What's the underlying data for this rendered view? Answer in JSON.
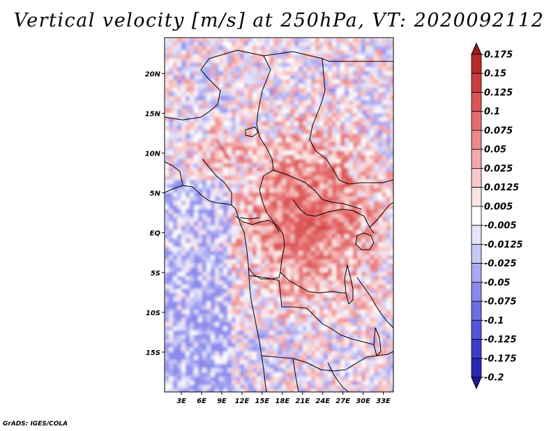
{
  "title": "Vertical velocity [m/s] at 250hPa, VT: 2020092112",
  "credit": "GrADS: IGES/COLA",
  "map": {
    "lat_ticks": [
      "20N",
      "15N",
      "10N",
      "5N",
      "EQ",
      "5S",
      "10S",
      "15S"
    ],
    "lon_ticks": [
      "3E",
      "6E",
      "9E",
      "12E",
      "15E",
      "18E",
      "21E",
      "24E",
      "27E",
      "30E",
      "33E"
    ]
  },
  "colorbar": {
    "labels": [
      "0.175",
      "0.15",
      "0.125",
      "0.1",
      "0.075",
      "0.05",
      "0.025",
      "0.0125",
      "0.005",
      "-0.005",
      "-0.0125",
      "-0.025",
      "-0.05",
      "-0.075",
      "-0.1",
      "-0.125",
      "-0.175",
      "-0.2"
    ],
    "colors": [
      "#a01818",
      "#b92828",
      "#cd3c3c",
      "#dd5454",
      "#e56d6d",
      "#ec8a8a",
      "#f3a9a9",
      "#f8c8c8",
      "#fce4e4",
      "#ffffff",
      "#e4e4fc",
      "#c8c8f7",
      "#a9a9f2",
      "#8a8aec",
      "#6d6de4",
      "#5454dd",
      "#3c3cc9",
      "#2828b4",
      "#1818a0"
    ]
  },
  "chart_data": {
    "type": "heatmap",
    "title": "Vertical velocity [m/s] at 250hPa, VT: 2020092112",
    "xlabel": "",
    "ylabel": "",
    "x_ticks": [
      "3E",
      "6E",
      "9E",
      "12E",
      "15E",
      "18E",
      "21E",
      "24E",
      "27E",
      "30E",
      "33E"
    ],
    "y_ticks": [
      "20N",
      "15N",
      "10N",
      "5N",
      "EQ",
      "5S",
      "10S",
      "15S"
    ],
    "color_levels": [
      0.175,
      0.15,
      0.125,
      0.1,
      0.075,
      0.05,
      0.025,
      0.0125,
      0.005,
      -0.005,
      -0.0125,
      -0.025,
      -0.05,
      -0.075,
      -0.1,
      -0.125,
      -0.175,
      -0.2
    ],
    "xlim": [
      0.5,
      34.5
    ],
    "ylim": [
      -20,
      24.5
    ]
  }
}
